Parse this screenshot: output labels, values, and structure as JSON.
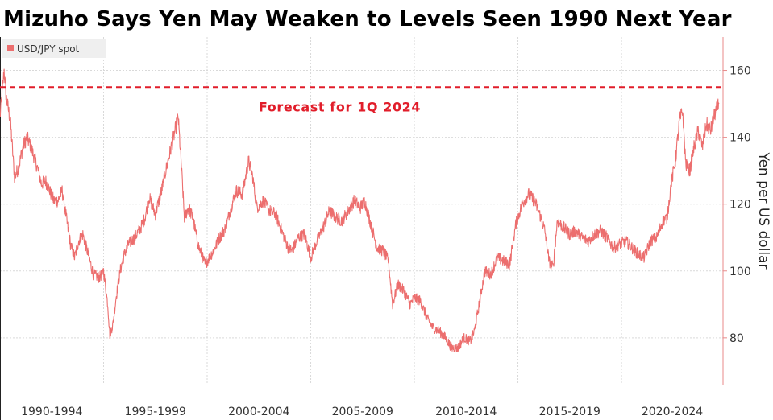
{
  "title": "Mizuho Says Yen May Weaken to Levels Seen 1990 Next Year",
  "chart_data": {
    "type": "line",
    "title": "Mizuho Says Yen May Weaken to Levels Seen 1990 Next Year",
    "xlabel": "",
    "ylabel": "Yen per US dollar",
    "xlim": [
      1990,
      2024.9
    ],
    "ylim": [
      66,
      170
    ],
    "yticks": [
      80,
      100,
      120,
      140,
      160
    ],
    "xtick_labels": [
      "1990-1994",
      "1995-1999",
      "2000-2004",
      "2005-2009",
      "2010-2014",
      "2015-2019",
      "2020-2024"
    ],
    "legend": {
      "position": "top-left",
      "entries": [
        "USD/JPY spot"
      ]
    },
    "colors": {
      "series": "#ec6e6e",
      "forecast": "#e11d2a",
      "grid": "#d9d9d9",
      "axis": "#e88a8a"
    },
    "series": [
      {
        "name": "USD/JPY spot",
        "x": [
          1990.0,
          1990.2,
          1990.3,
          1990.5,
          1990.7,
          1990.9,
          1991.1,
          1991.3,
          1991.5,
          1991.8,
          1992.0,
          1992.2,
          1992.4,
          1992.6,
          1992.8,
          1993.0,
          1993.2,
          1993.4,
          1993.6,
          1993.8,
          1994.0,
          1994.3,
          1994.5,
          1994.8,
          1995.0,
          1995.2,
          1995.3,
          1995.45,
          1995.6,
          1995.8,
          1996.0,
          1996.2,
          1996.5,
          1996.8,
          1997.0,
          1997.2,
          1997.5,
          1997.8,
          1998.0,
          1998.3,
          1998.6,
          1998.75,
          1998.9,
          1999.1,
          1999.3,
          1999.6,
          1999.9,
          2000.1,
          2000.3,
          2000.6,
          2000.9,
          2001.1,
          2001.4,
          2001.7,
          2002.0,
          2002.2,
          2002.4,
          2002.7,
          2003.0,
          2003.3,
          2003.6,
          2003.9,
          2004.1,
          2004.4,
          2004.7,
          2005.0,
          2005.3,
          2005.6,
          2005.9,
          2006.2,
          2006.5,
          2006.8,
          2007.1,
          2007.4,
          2007.6,
          2007.9,
          2008.2,
          2008.5,
          2008.75,
          2008.95,
          2009.2,
          2009.5,
          2009.8,
          2010.0,
          2010.3,
          2010.6,
          2010.9,
          2011.2,
          2011.5,
          2011.8,
          2012.1,
          2012.4,
          2012.7,
          2012.9,
          2013.1,
          2013.4,
          2013.7,
          2014.0,
          2014.3,
          2014.6,
          2014.9,
          2015.2,
          2015.5,
          2015.8,
          2016.0,
          2016.3,
          2016.5,
          2016.7,
          2016.9,
          2017.2,
          2017.5,
          2017.8,
          2018.1,
          2018.4,
          2018.7,
          2019.0,
          2019.3,
          2019.6,
          2019.9,
          2020.2,
          2020.5,
          2020.8,
          2021.1,
          2021.4,
          2021.7,
          2022.0,
          2022.2,
          2022.4,
          2022.6,
          2022.8,
          2022.95,
          2023.1,
          2023.3,
          2023.5,
          2023.7,
          2023.9,
          2024.1,
          2024.3,
          2024.5,
          2024.7
        ],
        "values": [
          146,
          160,
          152,
          145,
          128,
          131,
          137,
          140,
          137,
          131,
          126,
          127,
          124,
          121,
          121,
          124,
          116,
          108,
          104,
          109,
          111,
          104,
          99,
          98,
          100,
          90,
          81,
          84,
          92,
          100,
          105,
          108,
          110,
          113,
          116,
          122,
          117,
          124,
          130,
          138,
          146,
          132,
          116,
          119,
          116,
          107,
          102,
          104,
          106,
          110,
          113,
          118,
          124,
          123,
          133,
          128,
          119,
          121,
          118,
          117,
          112,
          107,
          106,
          110,
          111,
          104,
          109,
          113,
          118,
          116,
          115,
          118,
          121,
          119,
          121,
          114,
          107,
          106,
          103,
          90,
          96,
          94,
          90,
          92,
          91,
          86,
          83,
          82,
          80,
          77,
          77,
          80,
          79,
          82,
          89,
          100,
          99,
          104,
          103,
          102,
          114,
          120,
          123,
          121,
          118,
          112,
          103,
          101,
          115,
          113,
          111,
          112,
          110,
          109,
          111,
          112,
          110,
          107,
          108,
          109,
          107,
          105,
          104,
          109,
          110,
          115,
          116,
          126,
          133,
          145,
          148,
          132,
          130,
          137,
          142,
          137,
          144,
          142,
          147,
          150
        ]
      }
    ],
    "annotations": [
      {
        "type": "hline",
        "y": 155,
        "style": "dashed",
        "label": "Forecast for 1Q 2024"
      }
    ]
  }
}
